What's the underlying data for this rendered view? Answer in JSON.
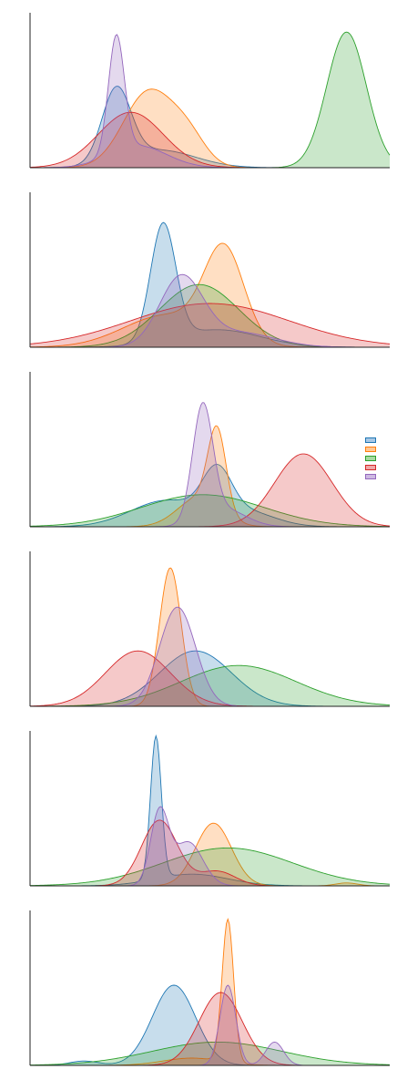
{
  "chart_data": [
    {
      "type": "area",
      "title": "",
      "xlabel": "",
      "ylabel": "",
      "grid": false,
      "xlim": [
        0,
        100
      ],
      "ylim": [
        0,
        1.0
      ],
      "series": [
        {
          "name": "",
          "components": [
            {
              "mu": 24,
              "sigma": 4,
              "w": 0.5
            },
            {
              "mu": 36,
              "sigma": 10,
              "w": 0.12
            }
          ]
        },
        {
          "name": "",
          "components": [
            {
              "mu": 33,
              "sigma": 7,
              "w": 0.52
            },
            {
              "mu": 44,
              "sigma": 5,
              "w": 0.18
            }
          ]
        },
        {
          "name": "",
          "components": [
            {
              "mu": 88,
              "sigma": 5.5,
              "w": 0.93
            }
          ]
        },
        {
          "name": "",
          "components": [
            {
              "mu": 28,
              "sigma": 9,
              "w": 0.38
            }
          ]
        },
        {
          "name": "",
          "components": [
            {
              "mu": 24,
              "sigma": 2.2,
              "w": 0.8
            },
            {
              "mu": 30,
              "sigma": 8,
              "w": 0.15
            }
          ]
        }
      ]
    },
    {
      "type": "area",
      "title": "",
      "xlabel": "",
      "ylabel": "",
      "grid": false,
      "xlim": [
        0,
        100
      ],
      "ylim": [
        0,
        1.0
      ],
      "series": [
        {
          "name": "",
          "components": [
            {
              "mu": 37,
              "sigma": 3.5,
              "w": 0.8
            },
            {
              "mu": 52,
              "sigma": 12,
              "w": 0.12
            }
          ]
        },
        {
          "name": "",
          "components": [
            {
              "mu": 54,
              "sigma": 5.5,
              "w": 0.62
            },
            {
              "mu": 38,
              "sigma": 12,
              "w": 0.22
            }
          ]
        },
        {
          "name": "",
          "components": [
            {
              "mu": 47,
              "sigma": 11,
              "w": 0.43
            }
          ]
        },
        {
          "name": "",
          "components": [
            {
              "mu": 50,
              "sigma": 22,
              "w": 0.3
            }
          ]
        },
        {
          "name": "",
          "components": [
            {
              "mu": 42,
              "sigma": 6,
              "w": 0.47
            },
            {
              "mu": 58,
              "sigma": 10,
              "w": 0.1
            }
          ]
        }
      ]
    },
    {
      "type": "area",
      "title": "",
      "xlabel": "",
      "ylabel": "",
      "grid": false,
      "xlim": [
        0,
        100
      ],
      "ylim": [
        0,
        1.0
      ],
      "series": [
        {
          "name": "",
          "components": [
            {
              "mu": 52,
              "sigma": 4,
              "w": 0.3
            },
            {
              "mu": 38,
              "sigma": 10,
              "w": 0.18
            },
            {
              "mu": 60,
              "sigma": 8,
              "w": 0.1
            }
          ]
        },
        {
          "name": "",
          "components": [
            {
              "mu": 52,
              "sigma": 2.5,
              "w": 0.55
            },
            {
              "mu": 47,
              "sigma": 6,
              "w": 0.2
            }
          ]
        },
        {
          "name": "",
          "components": [
            {
              "mu": 48,
              "sigma": 17,
              "w": 0.22
            }
          ]
        },
        {
          "name": "",
          "components": [
            {
              "mu": 76,
              "sigma": 8,
              "w": 0.5
            }
          ]
        },
        {
          "name": "",
          "components": [
            {
              "mu": 48,
              "sigma": 2.8,
              "w": 0.78
            },
            {
              "mu": 54,
              "sigma": 6,
              "w": 0.12
            }
          ]
        }
      ]
    },
    {
      "type": "area",
      "title": "",
      "xlabel": "",
      "ylabel": "",
      "grid": false,
      "xlim": [
        0,
        100
      ],
      "ylim": [
        0,
        1.0
      ],
      "series": [
        {
          "name": "",
          "components": [
            {
              "mu": 46,
              "sigma": 10,
              "w": 0.38
            }
          ]
        },
        {
          "name": "",
          "components": [
            {
              "mu": 39,
              "sigma": 3,
              "w": 0.95
            }
          ]
        },
        {
          "name": "",
          "components": [
            {
              "mu": 58,
              "sigma": 16,
              "w": 0.28
            }
          ]
        },
        {
          "name": "",
          "components": [
            {
              "mu": 30,
              "sigma": 9,
              "w": 0.38
            }
          ]
        },
        {
          "name": "",
          "components": [
            {
              "mu": 41,
              "sigma": 5,
              "w": 0.68
            }
          ]
        }
      ]
    },
    {
      "type": "area",
      "title": "",
      "xlabel": "",
      "ylabel": "",
      "grid": false,
      "xlim": [
        0,
        100
      ],
      "ylim": [
        0,
        1.0
      ],
      "series": [
        {
          "name": "",
          "components": [
            {
              "mu": 35,
              "sigma": 1.5,
              "w": 0.98
            },
            {
              "mu": 45,
              "sigma": 10,
              "w": 0.08
            }
          ]
        },
        {
          "name": "",
          "components": [
            {
              "mu": 51,
              "sigma": 5,
              "w": 0.43
            },
            {
              "mu": 88,
              "sigma": 3,
              "w": 0.02
            }
          ]
        },
        {
          "name": "",
          "components": [
            {
              "mu": 55,
              "sigma": 18,
              "w": 0.26
            }
          ]
        },
        {
          "name": "",
          "components": [
            {
              "mu": 36,
              "sigma": 5,
              "w": 0.45
            },
            {
              "mu": 52,
              "sigma": 5,
              "w": 0.1
            }
          ]
        },
        {
          "name": "",
          "components": [
            {
              "mu": 36,
              "sigma": 2.5,
              "w": 0.5
            },
            {
              "mu": 44,
              "sigma": 4,
              "w": 0.3
            }
          ]
        }
      ]
    },
    {
      "type": "area",
      "title": "",
      "xlabel": "",
      "ylabel": "",
      "grid": false,
      "xlim": [
        0,
        100
      ],
      "ylim": [
        0,
        1.0
      ],
      "series": [
        {
          "name": "",
          "components": [
            {
              "mu": 40,
              "sigma": 6,
              "w": 0.55
            },
            {
              "mu": 15,
              "sigma": 4,
              "w": 0.03
            }
          ]
        },
        {
          "name": "",
          "components": [
            {
              "mu": 55,
              "sigma": 1.6,
              "w": 0.98
            },
            {
              "mu": 45,
              "sigma": 8,
              "w": 0.05
            }
          ]
        },
        {
          "name": "",
          "components": [
            {
              "mu": 52,
              "sigma": 18,
              "w": 0.16
            }
          ]
        },
        {
          "name": "",
          "components": [
            {
              "mu": 53,
              "sigma": 6,
              "w": 0.5
            }
          ]
        },
        {
          "name": "",
          "components": [
            {
              "mu": 55,
              "sigma": 2.2,
              "w": 0.55
            },
            {
              "mu": 68,
              "sigma": 2.5,
              "w": 0.16
            }
          ]
        }
      ]
    }
  ],
  "colors": [
    "#1f77b4",
    "#ff7f0e",
    "#2ca02c",
    "#d62728",
    "#9467bd"
  ],
  "fill_colors": [
    "#a8c8e6",
    "#ffc895",
    "#a7d9a1",
    "#eea7a8",
    "#cdb9e2"
  ],
  "legend": {
    "placement": "right",
    "items": [
      {
        "label": ""
      },
      {
        "label": ""
      },
      {
        "label": ""
      },
      {
        "label": ""
      },
      {
        "label": ""
      }
    ]
  }
}
